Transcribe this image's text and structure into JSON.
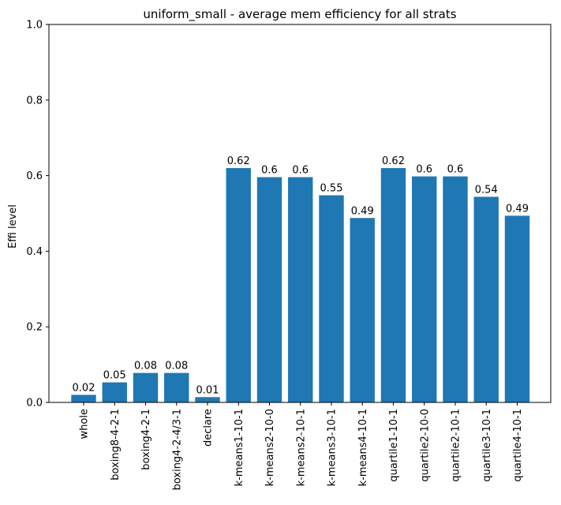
{
  "chart_data": {
    "type": "bar",
    "title": "uniform_small - average mem efficiency for all strats",
    "xlabel": "",
    "ylabel": "Effi level",
    "ylim": [
      0,
      1.0
    ],
    "yticks": [
      "0.0",
      "0.2",
      "0.4",
      "0.6",
      "0.8",
      "1.0"
    ],
    "ytick_values": [
      0,
      0.2,
      0.4,
      0.6,
      0.8,
      1.0
    ],
    "grid": false,
    "bar_color": "#1f77b4",
    "categories": [
      "whole",
      "boxing8-4-2-1",
      "boxing4-2-1",
      "boxing4-2-4/3-1",
      "declare",
      "k-means1-10-1",
      "k-means2-10-0",
      "k-means2-10-1",
      "k-means3-10-1",
      "k-means4-10-1",
      "quartile1-10-1",
      "quartile2-10-0",
      "quartile2-10-1",
      "quartile3-10-1",
      "quartile4-10-1"
    ],
    "values": [
      0.02,
      0.053,
      0.078,
      0.078,
      0.014,
      0.62,
      0.596,
      0.596,
      0.548,
      0.488,
      0.62,
      0.598,
      0.598,
      0.544,
      0.494
    ],
    "data_labels": [
      "0.02",
      "0.05",
      "0.08",
      "0.08",
      "0.01",
      "0.62",
      "0.6",
      "0.6",
      "0.55",
      "0.49",
      "0.62",
      "0.6",
      "0.6",
      "0.54",
      "0.49"
    ]
  }
}
